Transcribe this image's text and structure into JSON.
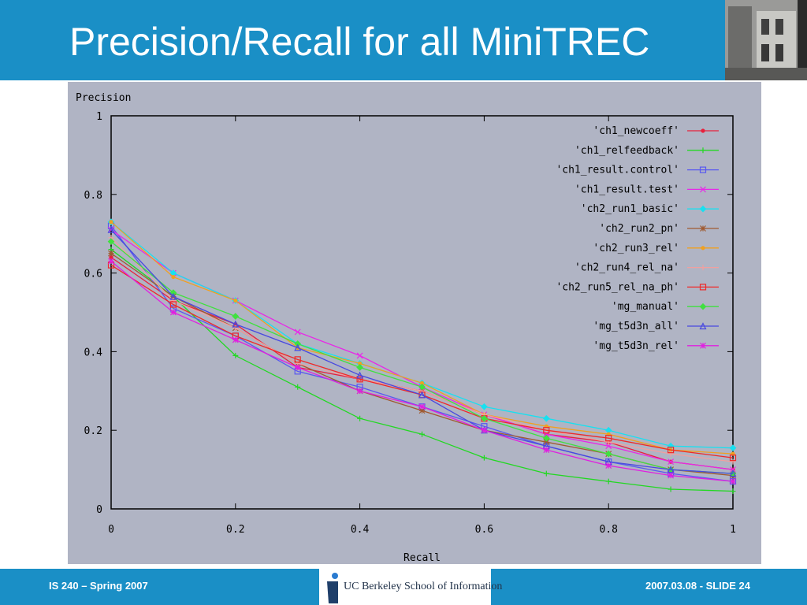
{
  "slide": {
    "title": "Precision/Recall for all MiniTREC",
    "footer_left": "IS 240 – Spring 2007",
    "footer_right": "2007.03.08 - SLIDE 24",
    "logo_text": "UC Berkeley School of Information"
  },
  "colors": {
    "header_bg": "#1a8fc6",
    "plot_bg": "#b0b4c4"
  },
  "chart_data": {
    "type": "line",
    "title": "",
    "xlabel": "Recall",
    "ylabel": "Precision",
    "xlim": [
      0,
      1
    ],
    "ylim": [
      0,
      1
    ],
    "xticks": [
      "0",
      "0.2",
      "0.4",
      "0.6",
      "0.8",
      "1"
    ],
    "yticks": [
      "0",
      "0.2",
      "0.4",
      "0.6",
      "0.8",
      "1"
    ],
    "grid": false,
    "legend_position": "top-right",
    "x": [
      0,
      0.1,
      0.2,
      0.3,
      0.4,
      0.5,
      0.6,
      0.7,
      0.8,
      0.9,
      1.0
    ],
    "series": [
      {
        "name": "'ch1_newcoeff'",
        "color": "#e8203c",
        "marker": "dot",
        "values": [
          0.64,
          0.53,
          0.47,
          0.36,
          0.33,
          0.3,
          0.24,
          0.19,
          0.17,
          0.12,
          0.1
        ]
      },
      {
        "name": "'ch1_relfeedback'",
        "color": "#22d822",
        "marker": "plus",
        "values": [
          0.66,
          0.54,
          0.39,
          0.31,
          0.23,
          0.19,
          0.13,
          0.09,
          0.07,
          0.05,
          0.045
        ]
      },
      {
        "name": "'ch1_result.control'",
        "color": "#5858f0",
        "marker": "square",
        "values": [
          0.72,
          0.51,
          0.44,
          0.35,
          0.31,
          0.26,
          0.21,
          0.16,
          0.12,
          0.09,
          0.07
        ]
      },
      {
        "name": "'ch1_result.test'",
        "color": "#e828e8",
        "marker": "x",
        "values": [
          0.71,
          0.6,
          0.53,
          0.45,
          0.39,
          0.31,
          0.24,
          0.19,
          0.16,
          0.12,
          0.1
        ]
      },
      {
        "name": "'ch2_run1_basic'",
        "color": "#18e0f0",
        "marker": "diamond",
        "values": [
          0.73,
          0.6,
          0.53,
          0.42,
          0.37,
          0.32,
          0.26,
          0.23,
          0.2,
          0.16,
          0.155
        ]
      },
      {
        "name": "'ch2_run2_pn'",
        "color": "#a05a30",
        "marker": "star",
        "values": [
          0.65,
          0.54,
          0.46,
          0.37,
          0.3,
          0.25,
          0.2,
          0.17,
          0.14,
          0.1,
          0.085
        ]
      },
      {
        "name": "'ch2_run3_rel'",
        "color": "#f0a020",
        "marker": "dot",
        "values": [
          0.73,
          0.59,
          0.53,
          0.41,
          0.37,
          0.32,
          0.24,
          0.21,
          0.19,
          0.15,
          0.14
        ]
      },
      {
        "name": "'ch2_run4_rel_na'",
        "color": "#f0a0a0",
        "marker": "plus",
        "values": [
          0.69,
          0.53,
          0.46,
          0.37,
          0.33,
          0.3,
          0.24,
          0.2,
          0.17,
          0.14,
          0.12
        ]
      },
      {
        "name": "'ch2_run5_rel_na_ph'",
        "color": "#f02828",
        "marker": "square",
        "values": [
          0.62,
          0.52,
          0.44,
          0.38,
          0.33,
          0.29,
          0.23,
          0.2,
          0.18,
          0.15,
          0.13
        ]
      },
      {
        "name": "'mg_manual'",
        "color": "#40e040",
        "marker": "diamond",
        "values": [
          0.68,
          0.55,
          0.49,
          0.42,
          0.36,
          0.31,
          0.23,
          0.18,
          0.14,
          0.1,
          0.09
        ]
      },
      {
        "name": "'mg_t5d3n_all'",
        "color": "#4848e0",
        "marker": "triangle",
        "values": [
          0.71,
          0.54,
          0.47,
          0.41,
          0.34,
          0.29,
          0.2,
          0.16,
          0.12,
          0.1,
          0.09
        ]
      },
      {
        "name": "'mg_t5d3n_rel'",
        "color": "#e020e0",
        "marker": "star",
        "values": [
          0.63,
          0.5,
          0.43,
          0.36,
          0.3,
          0.26,
          0.2,
          0.15,
          0.11,
          0.085,
          0.07
        ]
      }
    ]
  }
}
